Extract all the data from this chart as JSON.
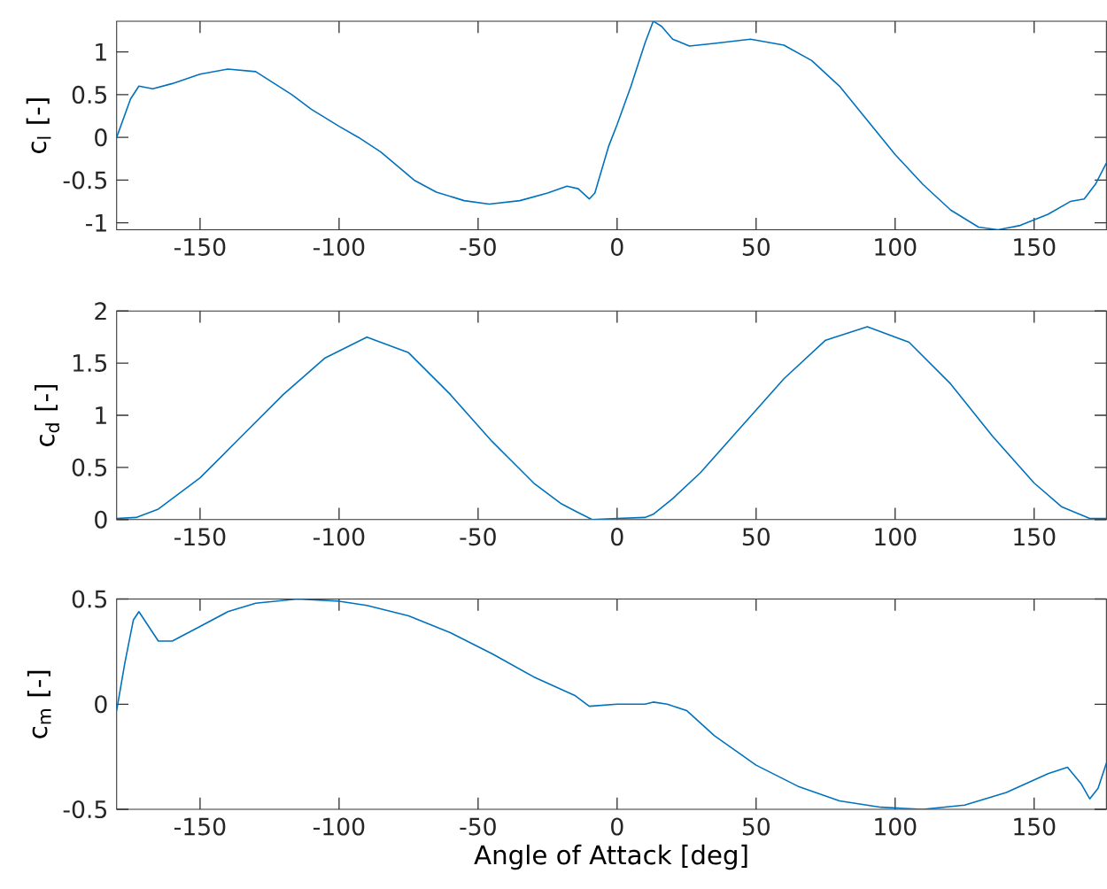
{
  "chart_data": [
    {
      "type": "line",
      "ylabel": "c$_{l}$ [-]",
      "xlim": [
        -180,
        176
      ],
      "ylim": [
        -1.08,
        1.36
      ],
      "xticks": [
        -150,
        -100,
        -50,
        0,
        50,
        100,
        150
      ],
      "yticks": [
        -1,
        -0.5,
        0,
        0.5,
        1
      ],
      "grid": false,
      "series": [
        {
          "color": "#0072bd",
          "x": [
            -180,
            -175,
            -172,
            -167,
            -160,
            -150,
            -140,
            -130,
            -117,
            -110,
            -100,
            -93,
            -85,
            -73,
            -65,
            -55,
            -46,
            -35,
            -25,
            -18,
            -14,
            -10,
            -8,
            -3,
            0,
            5,
            10,
            13,
            16,
            20,
            26,
            35,
            48,
            60,
            70,
            80,
            90,
            100,
            110,
            120,
            130,
            137,
            145,
            155,
            163,
            168,
            172,
            176
          ],
          "values": [
            0,
            0.45,
            0.6,
            0.57,
            0.63,
            0.74,
            0.8,
            0.77,
            0.5,
            0.33,
            0.13,
            0,
            -0.17,
            -0.5,
            -0.64,
            -0.74,
            -0.78,
            -0.74,
            -0.65,
            -0.57,
            -0.6,
            -0.72,
            -0.65,
            -0.1,
            0.15,
            0.6,
            1.1,
            1.36,
            1.3,
            1.15,
            1.07,
            1.1,
            1.15,
            1.08,
            0.9,
            0.6,
            0.2,
            -0.2,
            -0.55,
            -0.85,
            -1.05,
            -1.08,
            -1.03,
            -0.9,
            -0.75,
            -0.72,
            -0.55,
            -0.3
          ]
        }
      ]
    },
    {
      "type": "line",
      "ylabel": "c$_{d}$ [-]",
      "xlim": [
        -180,
        176
      ],
      "ylim": [
        0,
        2
      ],
      "xticks": [
        -150,
        -100,
        -50,
        0,
        50,
        100,
        150
      ],
      "yticks": [
        0,
        0.5,
        1,
        1.5,
        2
      ],
      "grid": false,
      "series": [
        {
          "color": "#0072bd",
          "x": [
            -180,
            -173,
            -165,
            -150,
            -135,
            -120,
            -105,
            -90,
            -75,
            -60,
            -45,
            -30,
            -20,
            -15,
            -9,
            0,
            10,
            13,
            20,
            30,
            45,
            60,
            75,
            90,
            105,
            120,
            135,
            150,
            160,
            170,
            176
          ],
          "values": [
            0.01,
            0.02,
            0.1,
            0.4,
            0.8,
            1.2,
            1.55,
            1.75,
            1.6,
            1.2,
            0.75,
            0.35,
            0.15,
            0.08,
            0,
            0.01,
            0.02,
            0.05,
            0.2,
            0.45,
            0.9,
            1.35,
            1.72,
            1.85,
            1.7,
            1.3,
            0.8,
            0.35,
            0.12,
            0.01,
            0.01
          ]
        }
      ]
    },
    {
      "type": "line",
      "ylabel": "c$_{m}$ [-]",
      "xlabel": "Angle of Attack [deg]",
      "xlim": [
        -180,
        176
      ],
      "ylim": [
        -0.5,
        0.5
      ],
      "xticks": [
        -150,
        -100,
        -50,
        0,
        50,
        100,
        150
      ],
      "yticks": [
        -0.5,
        0,
        0.5
      ],
      "grid": false,
      "series": [
        {
          "color": "#0072bd",
          "x": [
            -180,
            -177,
            -174,
            -172,
            -169,
            -165,
            -160,
            -150,
            -140,
            -130,
            -115,
            -100,
            -90,
            -75,
            -60,
            -45,
            -30,
            -15,
            -10,
            0,
            10,
            13,
            18,
            25,
            35,
            50,
            65,
            80,
            95,
            110,
            125,
            140,
            155,
            162,
            167,
            170,
            173,
            176
          ],
          "values": [
            -0.03,
            0.2,
            0.4,
            0.44,
            0.38,
            0.3,
            0.3,
            0.37,
            0.44,
            0.48,
            0.5,
            0.49,
            0.47,
            0.42,
            0.34,
            0.24,
            0.13,
            0.04,
            -0.01,
            0,
            0,
            0.01,
            0,
            -0.03,
            -0.15,
            -0.29,
            -0.39,
            -0.46,
            -0.49,
            -0.5,
            -0.48,
            -0.42,
            -0.33,
            -0.3,
            -0.38,
            -0.45,
            -0.4,
            -0.28
          ]
        }
      ]
    }
  ]
}
